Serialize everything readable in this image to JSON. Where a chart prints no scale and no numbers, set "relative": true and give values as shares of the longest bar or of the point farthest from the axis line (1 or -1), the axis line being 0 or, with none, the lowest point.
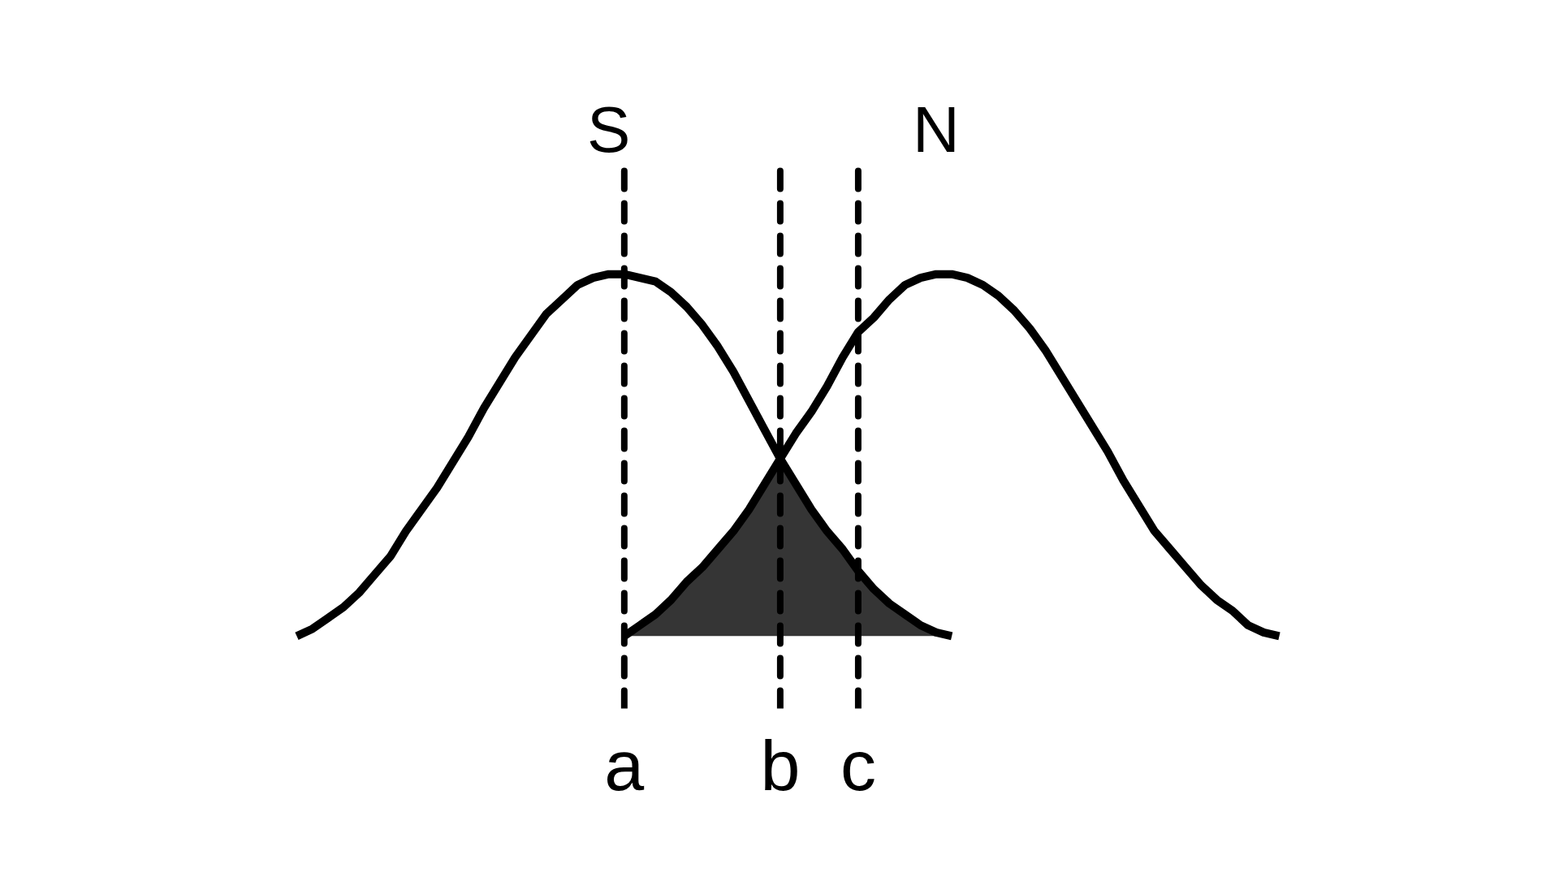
{
  "chart_data": {
    "type": "line",
    "relative": true,
    "categories": [
      null,
      null,
      null,
      null,
      null,
      null,
      null,
      null,
      null,
      null,
      null,
      null,
      null,
      null,
      null,
      null,
      null,
      null,
      null,
      null,
      null,
      "a",
      null,
      null,
      null,
      null,
      null,
      null,
      null,
      null,
      null,
      "b",
      null,
      null,
      null,
      null,
      "c",
      null,
      null,
      null,
      null,
      null,
      null,
      null,
      null,
      null,
      null,
      null,
      null,
      null,
      null,
      null,
      null,
      null,
      null,
      null,
      null,
      null,
      null,
      null,
      null,
      null,
      null,
      null
    ],
    "series": [
      {
        "name": "S",
        "color": "#000000",
        "values": [
          0,
          0.02,
          0.05,
          0.08,
          0.12,
          0.17,
          0.22,
          0.29,
          0.35,
          0.41,
          0.48,
          0.55,
          0.63,
          0.7,
          0.77,
          0.83,
          0.89,
          0.93,
          0.97,
          0.99,
          1.0,
          1.0,
          0.99,
          0.98,
          0.95,
          0.91,
          0.86,
          0.8,
          0.73,
          0.65,
          0.57,
          0.49,
          0.42,
          0.35,
          0.29,
          0.24,
          0.18,
          0.13,
          0.09,
          0.06,
          0.03,
          0.01,
          0,
          null,
          null,
          null,
          null,
          null,
          null,
          null,
          null,
          null,
          null,
          null,
          null,
          null,
          null,
          null,
          null,
          null,
          null,
          null,
          null,
          null
        ]
      },
      {
        "name": "N",
        "color": "#000000",
        "values": [
          null,
          null,
          null,
          null,
          null,
          null,
          null,
          null,
          null,
          null,
          null,
          null,
          null,
          null,
          null,
          null,
          null,
          null,
          null,
          null,
          null,
          0,
          0.03,
          0.06,
          0.1,
          0.15,
          0.19,
          0.24,
          0.29,
          0.35,
          0.42,
          0.49,
          0.56,
          0.62,
          0.69,
          0.77,
          0.84,
          0.88,
          0.93,
          0.97,
          0.99,
          1.0,
          1.0,
          0.99,
          0.97,
          0.94,
          0.9,
          0.85,
          0.79,
          0.72,
          0.65,
          0.58,
          0.51,
          0.43,
          0.36,
          0.29,
          0.24,
          0.19,
          0.14,
          0.1,
          0.07,
          0.03,
          0.01,
          0
        ]
      },
      {
        "type": "area",
        "color": "#353535",
        "values": [
          null,
          null,
          null,
          null,
          null,
          null,
          null,
          null,
          null,
          null,
          null,
          null,
          null,
          null,
          null,
          null,
          null,
          null,
          null,
          null,
          null,
          0,
          0.03,
          0.06,
          0.1,
          0.15,
          0.19,
          0.24,
          0.29,
          0.35,
          0.42,
          0.49,
          0.42,
          0.35,
          0.29,
          0.24,
          0.18,
          0.13,
          0.09,
          0.06,
          0.03,
          0.01,
          0,
          null,
          null,
          null,
          null,
          null,
          null,
          null,
          null,
          null,
          null,
          null,
          null,
          null,
          null,
          null,
          null,
          null,
          null,
          null,
          null,
          null
        ]
      }
    ],
    "ref_lines": [
      {
        "axis": "x",
        "value": "a",
        "color": "#000000",
        "line_style": "dashed"
      },
      {
        "axis": "x",
        "value": "b",
        "color": "#000000",
        "line_style": "dashed"
      },
      {
        "axis": "x",
        "value": "c",
        "color": "#000000",
        "line_style": "dashed"
      }
    ]
  }
}
